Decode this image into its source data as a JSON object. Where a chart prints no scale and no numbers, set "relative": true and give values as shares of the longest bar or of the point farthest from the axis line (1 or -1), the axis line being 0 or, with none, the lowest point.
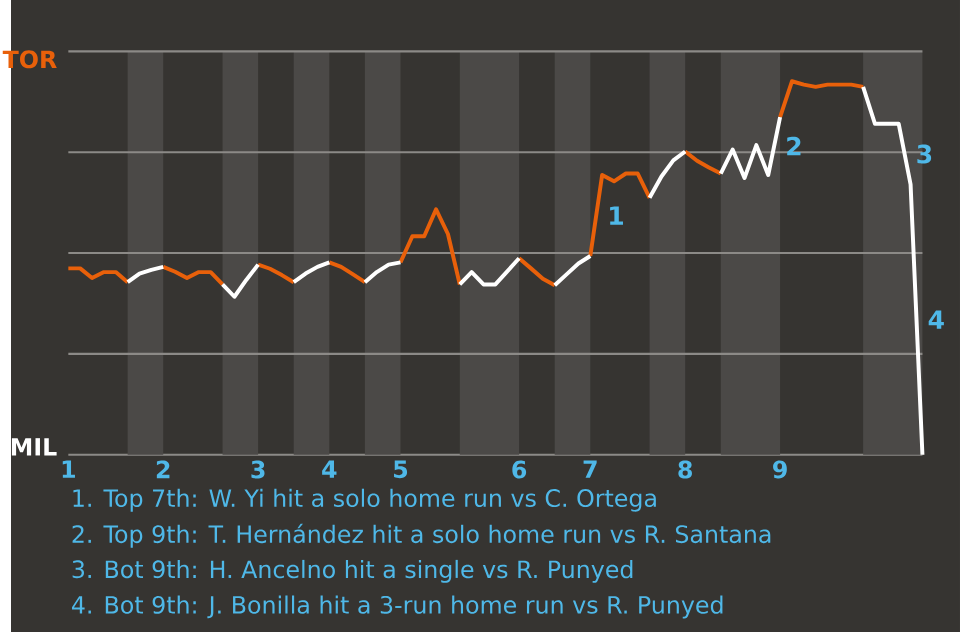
{
  "chart_data": {
    "type": "line",
    "relative": true,
    "categories": [
      "1",
      null,
      null,
      null,
      null,
      null,
      null,
      null,
      "2",
      null,
      null,
      null,
      null,
      null,
      null,
      null,
      "3",
      null,
      null,
      null,
      null,
      null,
      "4",
      null,
      null,
      null,
      null,
      null,
      "5",
      null,
      null,
      null,
      null,
      null,
      null,
      null,
      null,
      null,
      "6",
      null,
      null,
      null,
      null,
      null,
      "7",
      null,
      null,
      null,
      null,
      null,
      null,
      null,
      "8",
      null,
      null,
      null,
      null,
      null,
      null,
      null,
      "9",
      null,
      null,
      null,
      null,
      null,
      null,
      null,
      null,
      null,
      null,
      null,
      null
    ],
    "series": [
      {
        "color": "#e8600a",
        "values": [
          0.499,
          0.499,
          0.473,
          0.489,
          0.489,
          0.462,
          null,
          null,
          0.503,
          0.49,
          0.473,
          0.489,
          0.489,
          0.456,
          null,
          null,
          0.509,
          0.498,
          0.481,
          0.462,
          null,
          null,
          0.515,
          0.503,
          0.483,
          0.462,
          null,
          null,
          0.515,
          0.585,
          0.585,
          0.657,
          0.591,
          0.456,
          null,
          null,
          null,
          null,
          0.526,
          0.499,
          0.471,
          0.454,
          null,
          null,
          0.532,
          0.749,
          0.732,
          0.753,
          0.753,
          0.688,
          null,
          null,
          0.812,
          0.787,
          0.769,
          0.753,
          null,
          null,
          null,
          null,
          0.904,
          1,
          0.991,
          0.985,
          0.991,
          0.991,
          0.991,
          0.985,
          null,
          null,
          null,
          null,
          null
        ]
      },
      {
        "color": "#ffffff",
        "values": [
          null,
          null,
          null,
          null,
          null,
          0.462,
          0.485,
          0.495,
          0.503,
          null,
          null,
          null,
          null,
          0.456,
          0.423,
          0.468,
          0.509,
          null,
          null,
          0.462,
          0.485,
          0.503,
          0.515,
          null,
          null,
          0.462,
          0.489,
          0.509,
          0.515,
          null,
          null,
          null,
          null,
          0.456,
          0.489,
          0.456,
          0.456,
          0.491,
          0.526,
          null,
          null,
          0.454,
          0.483,
          0.512,
          0.532,
          null,
          null,
          null,
          null,
          0.688,
          0.745,
          0.788,
          0.812,
          null,
          null,
          0.753,
          0.817,
          0.741,
          0.829,
          0.749,
          0.904,
          null,
          null,
          null,
          null,
          null,
          null,
          0.985,
          0.886,
          0.886,
          0.886,
          0.724,
          0
        ]
      }
    ],
    "ref_lines": [
      {
        "axis": "y",
        "value": 0.27,
        "color": "#8c8a87"
      },
      {
        "axis": "y",
        "value": 0.54,
        "color": "#8c8a87"
      },
      {
        "axis": "y",
        "value": 0.81,
        "color": "#8c8a87"
      },
      {
        "axis": "y",
        "value": 1.08,
        "color": "#8c8a87"
      }
    ],
    "annotations": [
      "TOR",
      "MIL",
      "1",
      "2",
      "3",
      "4",
      "1. Top 7th: W. Yi hit a solo home run vs C. Ortega",
      "2. Top 9th: T. Hernández hit a solo home run vs R. Santana",
      "3. Bot 9th: H. Ancelno hit a single vs R. Punyed",
      "4. Bot 9th: J. Bonilla hit a 3-run home run vs R. Punyed"
    ]
  }
}
